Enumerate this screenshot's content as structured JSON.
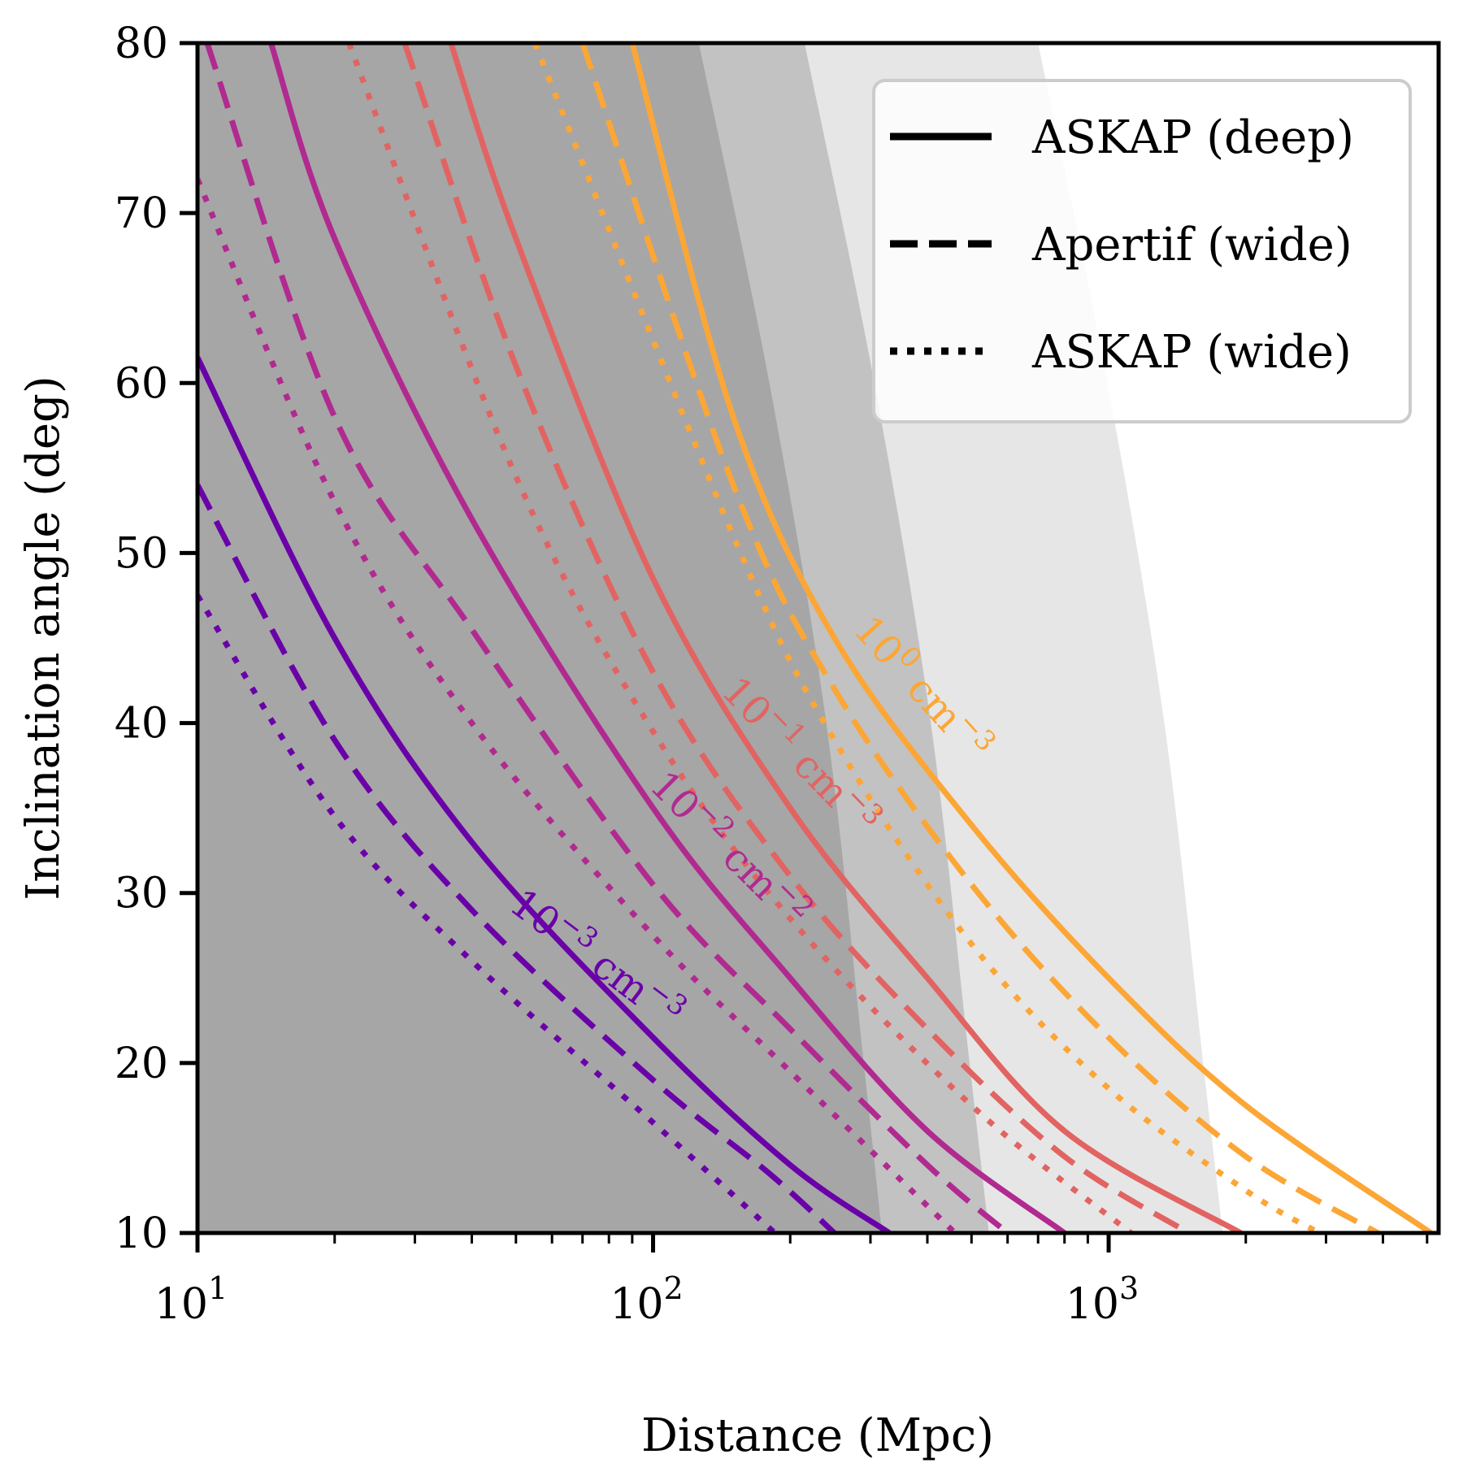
{
  "chart_data": {
    "type": "line",
    "xlabel": "Distance (Mpc)",
    "ylabel": "Inclination angle (deg)",
    "xscale": "log",
    "xlim": [
      10,
      5300
    ],
    "ylim": [
      10,
      80
    ],
    "xticks": [
      {
        "value": 10,
        "base": "10",
        "exp": "1"
      },
      {
        "value": 100,
        "base": "10",
        "exp": "2"
      },
      {
        "value": 1000,
        "base": "10",
        "exp": "3"
      }
    ],
    "yticks": [
      10,
      20,
      30,
      40,
      50,
      60,
      70,
      80
    ],
    "grid": false,
    "legend": {
      "location": "top-right",
      "entries": [
        {
          "label": "ASKAP (deep)",
          "style": "solid"
        },
        {
          "label": "Apertif (wide)",
          "style": "dashed"
        },
        {
          "label": "ASKAP (wide)",
          "style": "dotted"
        }
      ]
    },
    "shaded_regions": [
      {
        "color": "#a6a6a6",
        "boundary": [
          [
            126,
            80
          ],
          [
            180,
            60
          ],
          [
            240,
            40
          ],
          [
            290,
            20
          ],
          [
            318,
            10
          ]
        ]
      },
      {
        "color": "#c2c2c2",
        "boundary": [
          [
            215,
            80
          ],
          [
            306,
            60
          ],
          [
            407,
            40
          ],
          [
            495,
            20
          ],
          [
            546,
            10
          ]
        ]
      },
      {
        "color": "#e6e6e6",
        "boundary": [
          [
            700,
            80
          ],
          [
            994,
            60
          ],
          [
            1325,
            40
          ],
          [
            1612,
            20
          ],
          [
            1780,
            10
          ]
        ]
      }
    ],
    "series": [
      {
        "density": "1e-3",
        "style": "solid",
        "color": "#6a00a8",
        "points": [
          [
            10,
            61.5
          ],
          [
            20,
            45
          ],
          [
            40,
            33
          ],
          [
            100,
            21.5
          ],
          [
            200,
            14
          ],
          [
            330,
            10
          ]
        ]
      },
      {
        "density": "1e-3",
        "style": "dashed",
        "color": "#6a00a8",
        "points": [
          [
            10,
            54
          ],
          [
            20,
            39
          ],
          [
            40,
            29
          ],
          [
            100,
            19
          ],
          [
            180,
            13.5
          ],
          [
            250,
            10
          ]
        ]
      },
      {
        "density": "1e-3",
        "style": "dotted",
        "color": "#6a00a8",
        "points": [
          [
            10,
            47.5
          ],
          [
            20,
            34.5
          ],
          [
            40,
            26
          ],
          [
            100,
            16.5
          ],
          [
            185,
            10
          ]
        ]
      },
      {
        "density": "1e-2",
        "style": "solid",
        "color": "#b12a90",
        "points": [
          [
            14.5,
            80
          ],
          [
            20,
            68.5
          ],
          [
            40,
            52
          ],
          [
            100,
            35
          ],
          [
            200,
            25
          ],
          [
            400,
            16
          ],
          [
            800,
            10
          ]
        ]
      },
      {
        "density": "1e-2",
        "style": "dashed",
        "color": "#b12a90",
        "points": [
          [
            10.5,
            80
          ],
          [
            20,
            58
          ],
          [
            40,
            45.5
          ],
          [
            100,
            30.5
          ],
          [
            200,
            22
          ],
          [
            400,
            14
          ],
          [
            600,
            10
          ]
        ]
      },
      {
        "density": "1e-2",
        "style": "dotted",
        "color": "#b12a90",
        "points": [
          [
            10,
            72
          ],
          [
            20,
            53
          ],
          [
            40,
            40
          ],
          [
            100,
            27.5
          ],
          [
            200,
            19.5
          ],
          [
            460,
            10
          ]
        ]
      },
      {
        "density": "1e-1",
        "style": "solid",
        "color": "#e16462",
        "points": [
          [
            36,
            80
          ],
          [
            50,
            68.5
          ],
          [
            100,
            48.5
          ],
          [
            200,
            35
          ],
          [
            400,
            25
          ],
          [
            800,
            16
          ],
          [
            1950,
            10
          ]
        ]
      },
      {
        "density": "1e-1",
        "style": "dashed",
        "color": "#e16462",
        "points": [
          [
            28.5,
            80
          ],
          [
            50,
            61
          ],
          [
            100,
            43
          ],
          [
            200,
            31
          ],
          [
            400,
            22
          ],
          [
            800,
            14.5
          ],
          [
            1500,
            10
          ]
        ]
      },
      {
        "density": "1e-1",
        "style": "dotted",
        "color": "#e16462",
        "points": [
          [
            21.5,
            80
          ],
          [
            50,
            54.5
          ],
          [
            100,
            39.5
          ],
          [
            200,
            28.5
          ],
          [
            500,
            17.5
          ],
          [
            1120,
            10
          ]
        ]
      },
      {
        "density": "1e0",
        "style": "solid",
        "color": "#fca636",
        "points": [
          [
            90,
            80
          ],
          [
            150,
            58
          ],
          [
            250,
            45
          ],
          [
            500,
            34
          ],
          [
            1000,
            25
          ],
          [
            2000,
            17.5
          ],
          [
            5100,
            10
          ]
        ]
      },
      {
        "density": "1e0",
        "style": "dashed",
        "color": "#fca636",
        "points": [
          [
            70,
            80
          ],
          [
            150,
            54
          ],
          [
            250,
            42
          ],
          [
            500,
            30.5
          ],
          [
            1000,
            21.5
          ],
          [
            2000,
            14.5
          ],
          [
            3900,
            10
          ]
        ]
      },
      {
        "density": "1e0",
        "style": "dotted",
        "color": "#fca636",
        "points": [
          [
            55,
            80
          ],
          [
            150,
            51
          ],
          [
            250,
            39
          ],
          [
            500,
            27
          ],
          [
            1000,
            18.5
          ],
          [
            2000,
            12.5
          ],
          [
            2900,
            10
          ]
        ]
      }
    ],
    "contour_labels": [
      {
        "base": "10",
        "exp": "−3",
        "unit": "cm",
        "unit_exp": "−3",
        "color": "#6a00a8",
        "at": [
          72,
          25.5
        ],
        "angle": 37
      },
      {
        "base": "10",
        "exp": "−2",
        "unit": "cm",
        "unit_exp": "−2",
        "color": "#b12a90",
        "at": [
          140,
          32
        ],
        "angle": 45
      },
      {
        "base": "10",
        "exp": "−1",
        "unit": "cm",
        "unit_exp": "−3",
        "color": "#e16462",
        "at": [
          200,
          37.5
        ],
        "angle": 46
      },
      {
        "base": "10",
        "exp": "0",
        "unit": "cm",
        "unit_exp": "−3",
        "color": "#fca636",
        "at": [
          370,
          41.5
        ],
        "angle": 48
      }
    ]
  }
}
